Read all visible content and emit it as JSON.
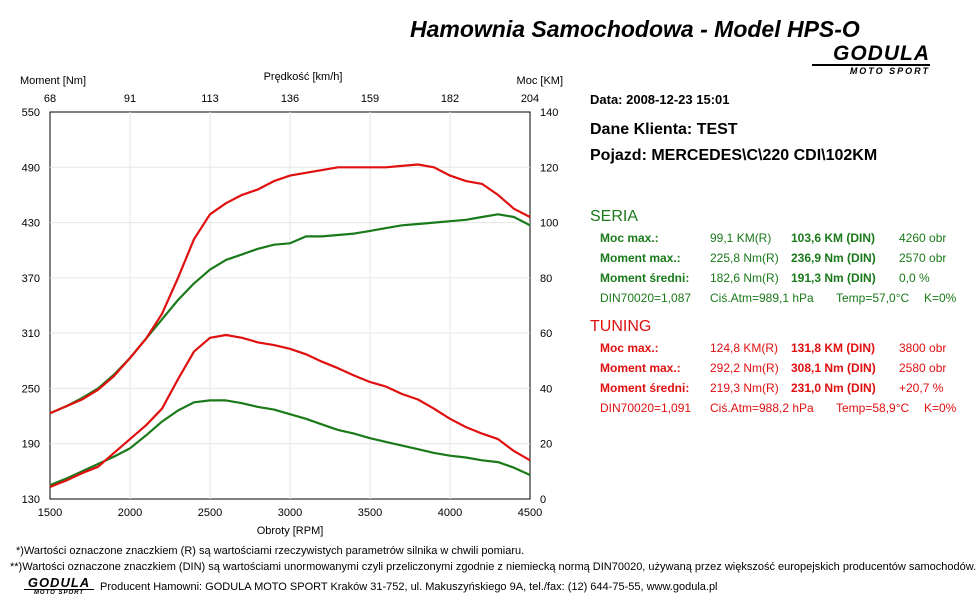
{
  "header": {
    "title": "Hamownia Samochodowa   -   Model HPS-O",
    "logo_word": "GODULA",
    "logo_sub": "MOTO SPORT"
  },
  "info": {
    "date": "Data: 2008-12-23  15:01",
    "client": "Dane Klienta: TEST",
    "vehicle": "Pojazd: MERCEDES\\C\\220 CDI\\102KM"
  },
  "seria": {
    "title": "SERIA",
    "rows": [
      {
        "label": "Moc max.:",
        "v1": "99,1 KM(R)",
        "v2": "103,6 KM (DIN)",
        "v3": "4260 obr"
      },
      {
        "label": "Moment max.:",
        "v1": "225,8 Nm(R)",
        "v2": "236,9 Nm (DIN)",
        "v3": "2570 obr"
      },
      {
        "label": "Moment średni:",
        "v1": "182,6 Nm(R)",
        "v2": "191,3 Nm (DIN)",
        "v3": "0,0 %"
      }
    ],
    "din": "DIN70020=1,087",
    "atm": "Ciś.Atm=989,1 hPa",
    "temp": "Temp=57,0°C",
    "k": "K=0%"
  },
  "tuning": {
    "title": "TUNING",
    "rows": [
      {
        "label": "Moc max.:",
        "v1": "124,8 KM(R)",
        "v2": "131,8 KM (DIN)",
        "v3": "3800 obr"
      },
      {
        "label": "Moment max.:",
        "v1": "292,2 Nm(R)",
        "v2": "308,1 Nm (DIN)",
        "v3": "2580 obr"
      },
      {
        "label": "Moment średni:",
        "v1": "219,3 Nm(R)",
        "v2": "231,0 Nm (DIN)",
        "v3": "+20,7 %"
      }
    ],
    "din": "DIN70020=1,091",
    "atm": "Ciś.Atm=988,2 hPa",
    "temp": "Temp=58,9°C",
    "k": "K=0%"
  },
  "footer": {
    "note1": "*)Wartości oznaczone znaczkiem (R) są wartościami rzeczywistych parametrów silnika w chwili pomiaru.",
    "note2": "**)Wartości oznaczone znaczkiem (DIN) są wartościami unormowanymi czyli przeliczonymi zgodnie z niemiecką normą DIN70020, używaną przez większość europejskich producentów samochodów.",
    "producer": "Producent Hamowni: GODULA MOTO SPORT Kraków 31-752, ul. Makuszyńskiego 9A, tel./fax: (12) 644-75-55, www.godula.pl"
  },
  "colors": {
    "seria": "#1a7a1a",
    "tuning": "#e01010",
    "grid": "#e6e6e6"
  },
  "chart_data": {
    "type": "line",
    "xlabel": "Obroty [RPM]",
    "ylabel_left": "Moment [Nm]",
    "ylabel_right": "Moc [KM]",
    "top_axis_label": "Prędkość [km/h]",
    "xlim": [
      1500,
      4500
    ],
    "ylim_left": [
      130,
      550
    ],
    "ylim_right": [
      0,
      140
    ],
    "x_ticks": [
      1500,
      2000,
      2500,
      3000,
      3500,
      4000,
      4500
    ],
    "y_ticks_left": [
      130,
      190,
      250,
      310,
      370,
      430,
      490,
      550
    ],
    "y_ticks_right": [
      0,
      20,
      40,
      60,
      80,
      100,
      120,
      140
    ],
    "top_ticks": [
      68,
      91,
      113,
      136,
      159,
      182,
      204
    ],
    "grid": true,
    "series": [
      {
        "name": "SERIA",
        "axis": "right",
        "x": [
          1500,
          1600,
          1700,
          1800,
          1900,
          2000,
          2100,
          2200,
          2300,
          2400,
          2500,
          2600,
          2700,
          2800,
          2900,
          3000,
          3100,
          3200,
          3300,
          3400,
          3500,
          3600,
          3700,
          3800,
          3900,
          4000,
          4100,
          4200,
          4300,
          4400,
          4500
        ],
        "values": [
          31,
          33.5,
          36.5,
          40,
          45,
          51,
          58,
          65,
          72,
          78,
          83,
          86.5,
          88.5,
          90.5,
          92,
          92.5,
          95,
          95,
          95.5,
          96,
          97,
          98,
          99,
          99.5,
          100,
          100.5,
          101,
          102,
          103,
          102,
          99
        ]
      },
      {
        "name": "SERIA",
        "axis": "left",
        "x": [
          1500,
          1600,
          1700,
          1800,
          1900,
          2000,
          2100,
          2200,
          2300,
          2400,
          2500,
          2600,
          2700,
          2800,
          2900,
          3000,
          3100,
          3200,
          3300,
          3400,
          3500,
          3600,
          3700,
          3800,
          3900,
          4000,
          4100,
          4200,
          4300,
          4400,
          4500
        ],
        "values": [
          145,
          152,
          160,
          168,
          176,
          185,
          199,
          214,
          226,
          235,
          237,
          237,
          234,
          230,
          227,
          222,
          217,
          211,
          205,
          201,
          196,
          192,
          188,
          184,
          180,
          177,
          175,
          172,
          170,
          164,
          156
        ]
      },
      {
        "name": "TUNING",
        "axis": "right",
        "x": [
          1500,
          1600,
          1700,
          1800,
          1900,
          2000,
          2100,
          2200,
          2300,
          2400,
          2500,
          2600,
          2700,
          2800,
          2900,
          3000,
          3100,
          3200,
          3300,
          3400,
          3500,
          3600,
          3700,
          3800,
          3900,
          4000,
          4100,
          4200,
          4300,
          4400,
          4500
        ],
        "values": [
          31,
          33.5,
          36,
          39.5,
          44.5,
          51,
          58,
          67,
          80,
          94,
          103,
          107,
          110,
          112,
          115,
          117,
          118,
          119,
          120,
          120,
          120,
          120,
          120.5,
          121,
          120,
          117,
          115,
          114,
          110,
          105,
          102
        ]
      },
      {
        "name": "TUNING",
        "axis": "left",
        "x": [
          1500,
          1600,
          1700,
          1800,
          1900,
          2000,
          2100,
          2200,
          2300,
          2400,
          2500,
          2600,
          2700,
          2800,
          2900,
          3000,
          3100,
          3200,
          3300,
          3400,
          3500,
          3600,
          3700,
          3800,
          3900,
          4000,
          4100,
          4200,
          4300,
          4400,
          4500
        ],
        "values": [
          143,
          150,
          158,
          165,
          180,
          195,
          210,
          228,
          260,
          290,
          305,
          308,
          305,
          300,
          297,
          293,
          287,
          279,
          272,
          264,
          257,
          252,
          244,
          238,
          228,
          217,
          208,
          201,
          195,
          182,
          172
        ]
      }
    ]
  }
}
